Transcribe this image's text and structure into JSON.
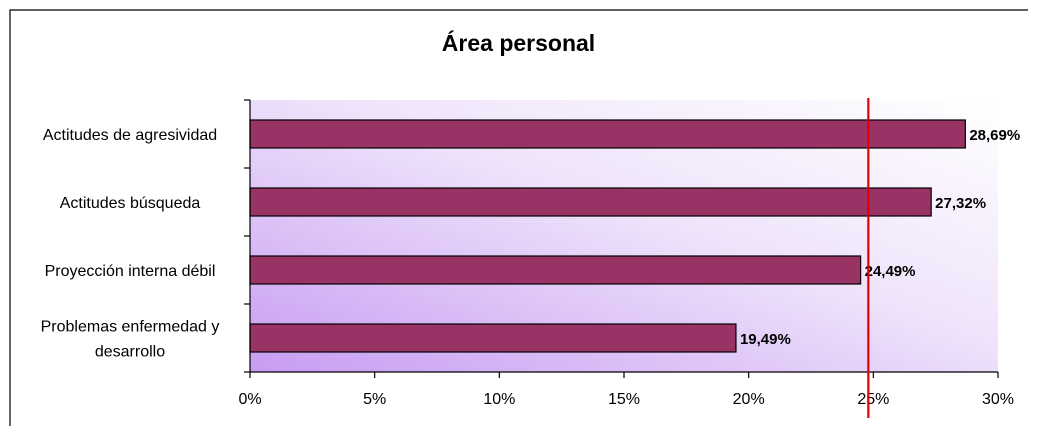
{
  "colors": {
    "bar_fill": "#993366",
    "bar_stroke": "#000000",
    "reference_line": "#e00000",
    "plot_gradient_light": "#ffffff",
    "plot_gradient_dark": "#c79cf2",
    "frame": "#000000"
  },
  "chart_data": {
    "type": "bar",
    "orientation": "horizontal",
    "title": "Área personal",
    "categories": [
      "Actitudes de agresividad",
      "Actitudes búsqueda",
      "Proyección interna débil",
      [
        "Problemas enfermedad y",
        "desarrollo"
      ]
    ],
    "values": [
      28.69,
      27.32,
      24.49,
      19.49
    ],
    "data_labels": [
      "28,69%",
      "27,32%",
      "24,49%",
      "19,49%"
    ],
    "x_ticks": [
      "0%",
      "5%",
      "10%",
      "15%",
      "20%",
      "25%",
      "30%"
    ],
    "xlim": [
      0,
      30
    ],
    "reference_line": 24.8,
    "grid": false,
    "legend": "none"
  }
}
